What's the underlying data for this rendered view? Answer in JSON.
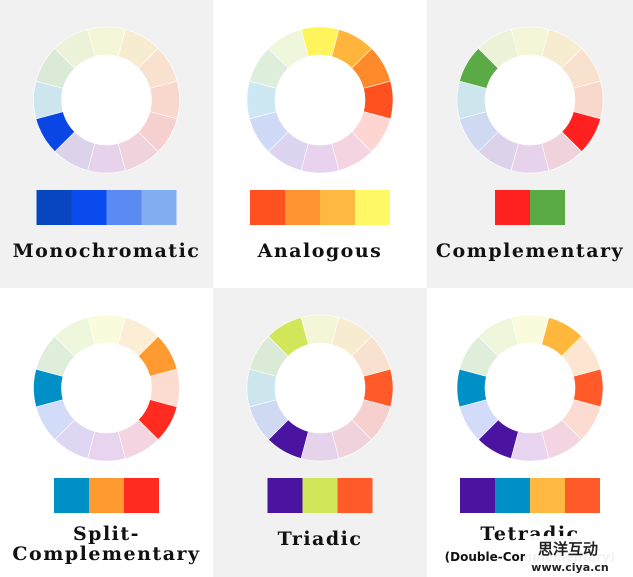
{
  "panels": [
    {
      "title": [
        "Monochromatic"
      ],
      "wheel": [
        "#f5f6d8",
        "#f8ecd0",
        "#f8e2cf",
        "#f8d8cc",
        "#f6cfcf",
        "#f0d2dc",
        "#e6d2ea",
        "#dcd2ea",
        "#0a46e6",
        "#cde6ee",
        "#dbead6",
        "#ebf2d8"
      ],
      "swatches": [
        "#0846c0",
        "#0a4cf0",
        "#5a8af2",
        "#80aef0"
      ]
    },
    {
      "title": [
        "Analogous"
      ],
      "wheel": [
        "#fff45a",
        "#ffb53c",
        "#ff8a2c",
        "#ff5020",
        "#fdd6d2",
        "#f4d4e0",
        "#e8d2ee",
        "#dcd4f0",
        "#cfdaf6",
        "#cde8f2",
        "#ddeedb",
        "#eef6dc"
      ],
      "swatches": [
        "#ff5020",
        "#ff9430",
        "#ffb840",
        "#fff866"
      ]
    },
    {
      "title": [
        "Complementary"
      ],
      "wheel": [
        "#f5f6d8",
        "#f8ecd0",
        "#f8e2cf",
        "#f8d8cc",
        "#ff2020",
        "#f0d2dc",
        "#e6d2ea",
        "#dcd2ea",
        "#cfdaf2",
        "#cde6ee",
        "#5aaa46",
        "#ebf2d8"
      ],
      "swatches": [
        "#ff2020",
        "#5aaa46"
      ]
    },
    {
      "title": [
        "Split-",
        "Complementary"
      ],
      "wheel": [
        "#fafadc",
        "#fbeed4",
        "#ff9a30",
        "#fcdcd0",
        "#ff2a20",
        "#f4d4e0",
        "#e8d4ee",
        "#ded6f2",
        "#d2dcf8",
        "#0090c8",
        "#deeedb",
        "#eef6dc"
      ],
      "swatches": [
        "#0090c8",
        "#ff9a30",
        "#ff2a20"
      ]
    },
    {
      "title": [
        "Triadic"
      ],
      "wheel": [
        "#f5f6d8",
        "#f8ecd0",
        "#f8e2cf",
        "#ff5a28",
        "#f6cfcf",
        "#f0d2dc",
        "#e6d2ea",
        "#4a14a0",
        "#cfdaf2",
        "#cde6ee",
        "#dbead6",
        "#d2e65a"
      ],
      "swatches": [
        "#4a14a0",
        "#d2e65a",
        "#ff5a28"
      ]
    },
    {
      "title": [
        "Tetradic"
      ],
      "subtitle": "(Double-Complementary)",
      "wheel": [
        "#fafadc",
        "#ffb83c",
        "#fce6d2",
        "#ff5a28",
        "#fcdcd0",
        "#f4d4e0",
        "#e8d4ee",
        "#4a14a0",
        "#d2dcf8",
        "#0090c8",
        "#deeedb",
        "#eef6dc"
      ],
      "swatches": [
        "#4a14a0",
        "#0090c8",
        "#ffb840",
        "#ff5a28"
      ]
    }
  ],
  "watermark": {
    "name": "思洋互动",
    "url": "www.ciya.cn"
  }
}
